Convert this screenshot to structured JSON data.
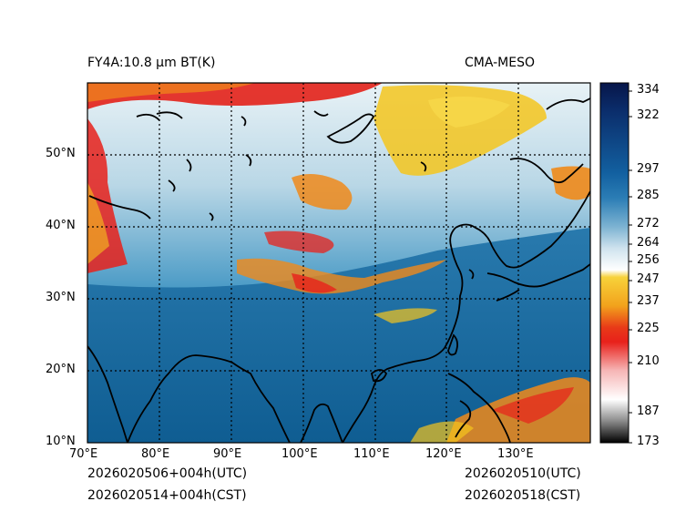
{
  "header": {
    "product_title": "FY4A:10.8 μm BT(K)",
    "model_name": "CMA-MESO"
  },
  "map": {
    "lon_range": [
      70,
      140
    ],
    "lat_range": [
      10,
      60
    ],
    "lon_labels": [
      "70°E",
      "80°E",
      "90°E",
      "100°E",
      "110°E",
      "120°E",
      "130°E"
    ],
    "lat_labels": [
      "50°N",
      "40°N",
      "30°N",
      "20°N",
      "10°N"
    ],
    "gridline_style": "dotted"
  },
  "colorbar": {
    "unit": "K",
    "range": [
      173,
      340
    ],
    "tick_labels": [
      "334",
      "322",
      "297",
      "285",
      "272",
      "264",
      "256",
      "247",
      "237",
      "225",
      "210",
      "187",
      "173"
    ],
    "colors": {
      "cold_high": "#08235a",
      "blue_mid": "#1b6fa8",
      "light_blue": "#cfe3ee",
      "white": "#ffffff",
      "yellow": "#f5c51d",
      "orange": "#f08a1a",
      "red": "#e8211b",
      "gray": "#8a8a8a",
      "black": "#000000"
    }
  },
  "footer": {
    "init_utc": "2026020506+004h(UTC)",
    "init_cst": "2026020514+004h(CST)",
    "valid_utc": "2026020510(UTC)",
    "valid_cst": "2026020518(CST)"
  }
}
